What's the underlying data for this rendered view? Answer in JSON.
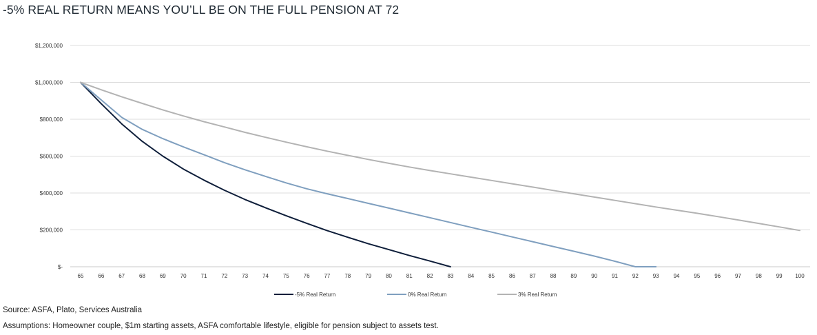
{
  "title": "-5% REAL RETURN MEANS YOU’LL BE ON THE FULL PENSION AT 72",
  "footnotes": {
    "source": "Source: ASFA, Plato, Services Australia",
    "assumptions": "Assumptions: Homeowner couple, $1m starting assets, ASFA comfortable lifestyle, eligible for pension subject to assets test."
  },
  "chart_data": {
    "type": "line",
    "title": "-5% REAL RETURN MEANS YOU’LL BE ON THE FULL PENSION AT 72",
    "xlabel": "",
    "ylabel": "",
    "ylim": [
      0,
      1200000
    ],
    "yticks": [
      0,
      200000,
      400000,
      600000,
      800000,
      1000000,
      1200000
    ],
    "ytick_labels": [
      "$-",
      "$200,000",
      "$400,000",
      "$600,000",
      "$800,000",
      "$1,000,000",
      "$1,200,000"
    ],
    "x": [
      65,
      66,
      67,
      68,
      69,
      70,
      71,
      72,
      73,
      74,
      75,
      76,
      77,
      78,
      79,
      80,
      81,
      82,
      83,
      84,
      85,
      86,
      87,
      88,
      89,
      90,
      91,
      92,
      93,
      94,
      95,
      96,
      97,
      98,
      99,
      100
    ],
    "x_labels": [
      "65",
      "66",
      "67",
      "68",
      "69",
      "70",
      "71",
      "72",
      "73",
      "74",
      "75",
      "76",
      "77",
      "78",
      "79",
      "80",
      "81",
      "82",
      "83",
      "84",
      "85",
      "86",
      "87",
      "88",
      "89",
      "90",
      "91",
      "92",
      "93",
      "94",
      "95",
      "96",
      "97",
      "98",
      "99",
      "100"
    ],
    "grid": "horizontal",
    "legend_position": "bottom",
    "series": [
      {
        "name": "-5% Real Return",
        "color": "#0e1e3a",
        "x": [
          65,
          66,
          67,
          68,
          69,
          70,
          71,
          72,
          73,
          74,
          75,
          76,
          77,
          78,
          79,
          80,
          81,
          82,
          83
        ],
        "values": [
          1000000,
          885000,
          775000,
          680000,
          600000,
          530000,
          470000,
          415000,
          365000,
          320000,
          277000,
          236000,
          196000,
          160000,
          125000,
          93000,
          61000,
          31000,
          0
        ]
      },
      {
        "name": "0% Real Return",
        "color": "#7f9fbf",
        "x": [
          65,
          66,
          67,
          68,
          69,
          70,
          71,
          72,
          73,
          74,
          75,
          76,
          77,
          78,
          79,
          80,
          81,
          82,
          83,
          84,
          85,
          86,
          87,
          88,
          89,
          90,
          91,
          92,
          93
        ],
        "values": [
          1000000,
          905000,
          810000,
          745000,
          695000,
          650000,
          608000,
          565000,
          526000,
          490000,
          455000,
          423000,
          396000,
          370000,
          344000,
          318000,
          292000,
          266000,
          240000,
          214000,
          188000,
          162000,
          136000,
          110000,
          84000,
          58000,
          30000,
          0,
          0
        ]
      },
      {
        "name": "3% Real Return",
        "color": "#b3b3b3",
        "x": [
          65,
          66,
          67,
          68,
          69,
          70,
          71,
          72,
          73,
          74,
          75,
          76,
          77,
          78,
          79,
          80,
          81,
          82,
          83,
          84,
          85,
          86,
          87,
          88,
          89,
          90,
          91,
          92,
          93,
          94,
          95,
          96,
          97,
          98,
          99,
          100
        ],
        "values": [
          1000000,
          960000,
          922000,
          886000,
          851000,
          818000,
          787000,
          758000,
          729000,
          702000,
          676000,
          651000,
          627000,
          604000,
          582000,
          561000,
          541000,
          522000,
          504000,
          486000,
          468000,
          450000,
          432000,
          414000,
          396000,
          378000,
          360000,
          342000,
          324000,
          307000,
          290000,
          272000,
          254000,
          235000,
          216000,
          197000
        ]
      }
    ]
  }
}
